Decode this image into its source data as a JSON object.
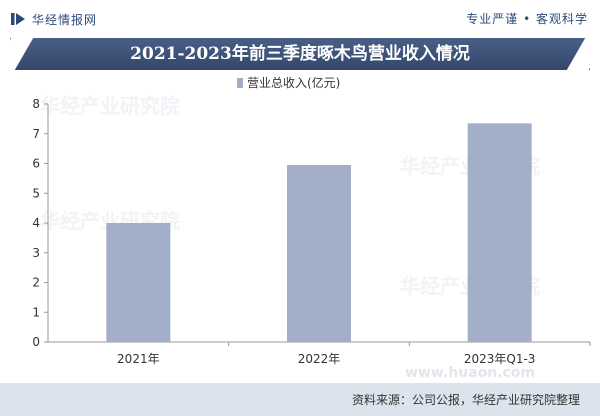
{
  "header": {
    "brand": "华经情报网",
    "slogan": "专业严谨 • 客观科学"
  },
  "title": "2021-2023年前三季度啄木鸟营业收入情况",
  "chart_data": {
    "type": "bar",
    "categories": [
      "2021年",
      "2022年",
      "2023年Q1-3"
    ],
    "series": [
      {
        "name": "营业总收入(亿元)",
        "values": [
          4.0,
          5.95,
          7.35
        ]
      }
    ],
    "ylim": [
      0,
      8
    ],
    "yticks": [
      0,
      1,
      2,
      3,
      4,
      5,
      6,
      7,
      8
    ],
    "legend_position": "top-center",
    "grid": false,
    "color": "#a3aec8"
  },
  "watermark": {
    "text": "华经产业研究院",
    "url": "www.huaon.com"
  },
  "footer": {
    "source": "资料来源：公司公报，华经产业研究院整理"
  }
}
